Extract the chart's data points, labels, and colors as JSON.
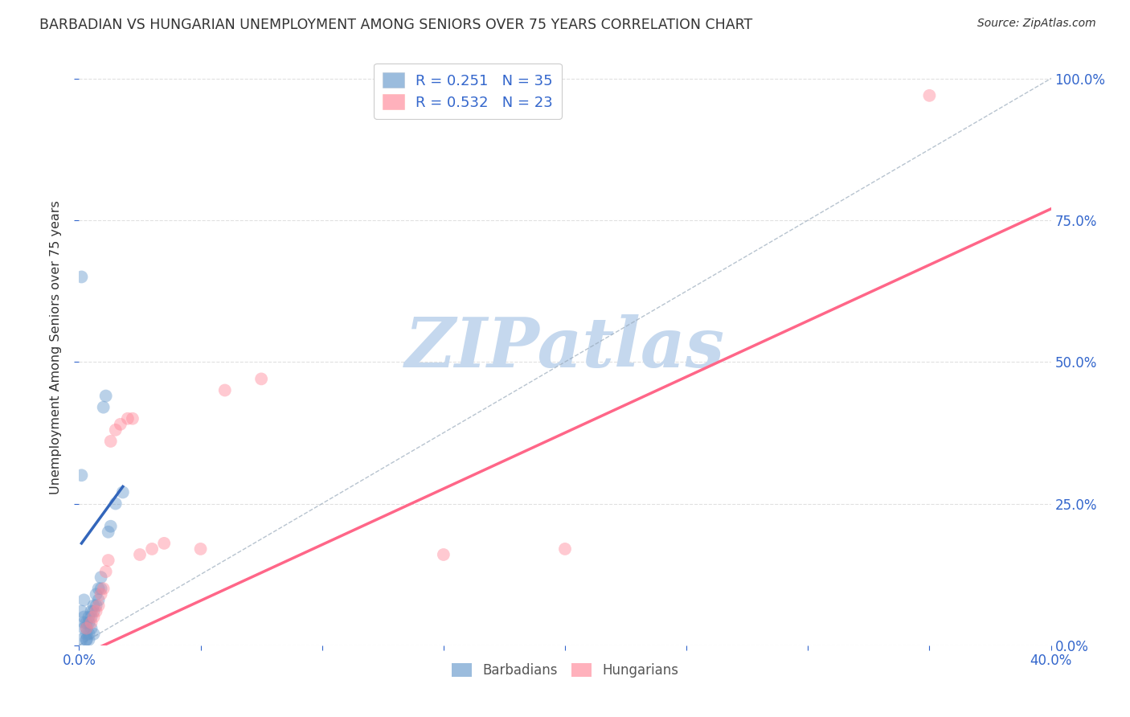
{
  "title": "BARBADIAN VS HUNGARIAN UNEMPLOYMENT AMONG SENIORS OVER 75 YEARS CORRELATION CHART",
  "source": "Source: ZipAtlas.com",
  "ylabel": "Unemployment Among Seniors over 75 years",
  "xlim": [
    0.0,
    0.4
  ],
  "ylim": [
    0.0,
    1.05
  ],
  "xtick_positions": [
    0.0,
    0.05,
    0.1,
    0.15,
    0.2,
    0.25,
    0.3,
    0.35,
    0.4
  ],
  "xticklabels": [
    "0.0%",
    "",
    "",
    "",
    "",
    "",
    "",
    "",
    "40.0%"
  ],
  "ytick_positions": [
    0.0,
    0.25,
    0.5,
    0.75,
    1.0
  ],
  "ytick_labels_right": [
    "0.0%",
    "25.0%",
    "50.0%",
    "75.0%",
    "100.0%"
  ],
  "barbadians_color": "#6699CC",
  "hungarians_color": "#FF8899",
  "trend_blue": "#3366BB",
  "trend_pink": "#FF6688",
  "diag_color": "#99AABB",
  "barbadians_R": "0.251",
  "barbadians_N": "35",
  "hungarians_R": "0.532",
  "hungarians_N": "23",
  "background_color": "#FFFFFF",
  "grid_color": "#DDDDDD",
  "watermark_text": "ZIPatlas",
  "watermark_color": "#C5D8EE",
  "label_color": "#3366CC",
  "title_color": "#333333",
  "barbadians_x": [
    0.001,
    0.001,
    0.001,
    0.002,
    0.002,
    0.002,
    0.002,
    0.003,
    0.003,
    0.003,
    0.003,
    0.003,
    0.004,
    0.004,
    0.004,
    0.004,
    0.005,
    0.005,
    0.005,
    0.006,
    0.006,
    0.006,
    0.007,
    0.007,
    0.008,
    0.008,
    0.009,
    0.009,
    0.01,
    0.011,
    0.012,
    0.013,
    0.015,
    0.018,
    0.001
  ],
  "barbadians_y": [
    0.65,
    0.3,
    0.06,
    0.08,
    0.05,
    0.04,
    0.03,
    0.04,
    0.03,
    0.02,
    0.01,
    0.01,
    0.05,
    0.04,
    0.02,
    0.01,
    0.06,
    0.05,
    0.03,
    0.07,
    0.06,
    0.02,
    0.09,
    0.07,
    0.1,
    0.08,
    0.12,
    0.1,
    0.42,
    0.44,
    0.2,
    0.21,
    0.25,
    0.27,
    0.01
  ],
  "hungarians_x": [
    0.003,
    0.005,
    0.006,
    0.007,
    0.008,
    0.009,
    0.01,
    0.011,
    0.012,
    0.013,
    0.015,
    0.017,
    0.02,
    0.022,
    0.025,
    0.03,
    0.035,
    0.05,
    0.06,
    0.075,
    0.15,
    0.2,
    0.35
  ],
  "hungarians_y": [
    0.03,
    0.04,
    0.05,
    0.06,
    0.07,
    0.09,
    0.1,
    0.13,
    0.15,
    0.36,
    0.38,
    0.39,
    0.4,
    0.4,
    0.16,
    0.17,
    0.18,
    0.17,
    0.45,
    0.47,
    0.16,
    0.17,
    0.97
  ],
  "htrend_x0": 0.0,
  "htrend_y0": -0.02,
  "htrend_x1": 0.4,
  "htrend_y1": 0.77,
  "btrend_x0": 0.001,
  "btrend_y0": 0.18,
  "btrend_x1": 0.018,
  "btrend_y1": 0.28
}
